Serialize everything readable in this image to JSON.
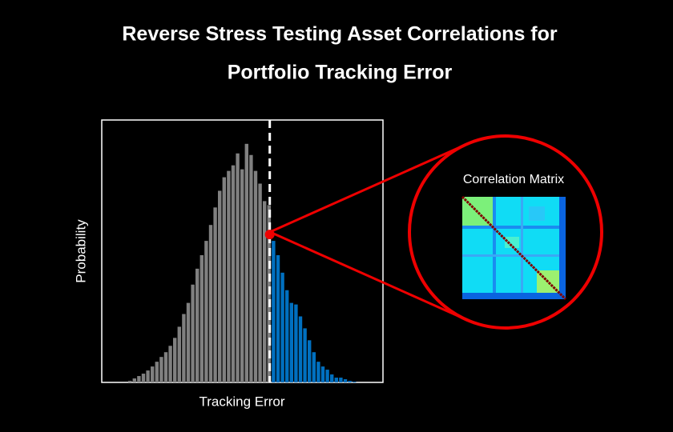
{
  "title_lines": [
    "Reverse Stress Testing Asset Correlations for",
    "Portfolio Tracking Error"
  ],
  "chart_data": {
    "type": "bar",
    "x_label": "Tracking Error",
    "y_label": "Probability",
    "values": [
      2,
      5,
      8,
      11,
      15,
      20,
      26,
      32,
      38,
      46,
      56,
      70,
      86,
      100,
      123,
      143,
      160,
      178,
      198,
      220,
      241,
      258,
      266,
      273,
      288,
      268,
      300,
      286,
      266,
      250,
      228,
      223,
      178,
      160,
      138,
      116,
      100,
      98,
      83,
      68,
      53,
      38,
      26,
      20,
      16,
      10,
      6,
      6,
      4,
      2,
      1
    ],
    "bar_colors": [
      "#808080",
      "#808080",
      "#808080",
      "#808080",
      "#808080",
      "#808080",
      "#808080",
      "#808080",
      "#808080",
      "#808080",
      "#808080",
      "#808080",
      "#808080",
      "#808080",
      "#808080",
      "#808080",
      "#808080",
      "#808080",
      "#808080",
      "#808080",
      "#808080",
      "#808080",
      "#808080",
      "#808080",
      "#808080",
      "#808080",
      "#808080",
      "#808080",
      "#808080",
      "#808080",
      "#808080",
      "#808080",
      "#0070c0",
      "#0070c0",
      "#0070c0",
      "#0070c0",
      "#0070c0",
      "#0070c0",
      "#0070c0",
      "#0070c0",
      "#0070c0",
      "#0070c0",
      "#0070c0",
      "#0070c0",
      "#0070c0",
      "#0070c0",
      "#0070c0",
      "#0070c0",
      "#0070c0",
      "#0070c0",
      "#0070c0"
    ],
    "ylim": [
      0,
      330
    ]
  },
  "inset": {
    "label": "Correlation Matrix"
  }
}
